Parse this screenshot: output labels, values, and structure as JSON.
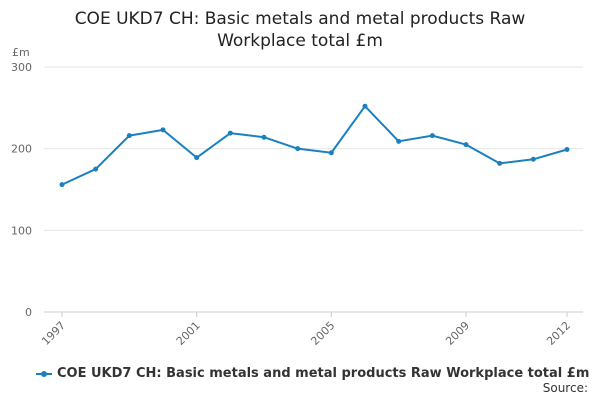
{
  "chart_data": {
    "type": "line",
    "title_lines": [
      "COE UKD7 CH: Basic metals and metal products Raw",
      "Workplace total £m"
    ],
    "unit_label": "£m",
    "x": [
      1997,
      1998,
      1999,
      2000,
      2001,
      2002,
      2003,
      2004,
      2005,
      2006,
      2007,
      2008,
      2009,
      2010,
      2011,
      2012
    ],
    "x_tick_labels": [
      "1997",
      "2001",
      "2005",
      "2009",
      "2012"
    ],
    "x_tick_values": [
      1997,
      2001,
      2005,
      2009,
      2012
    ],
    "y_ticks": [
      0,
      100,
      200,
      300
    ],
    "ylim": [
      0,
      300
    ],
    "xlim": [
      1997,
      2012
    ],
    "grid": true,
    "series": [
      {
        "name": "COE UKD7 CH: Basic metals and metal products Raw Workplace total £m",
        "color": "#1a80c0",
        "values": [
          156,
          175,
          216,
          223,
          189,
          219,
          214,
          200,
          195,
          252,
          209,
          216,
          205,
          182,
          187,
          199
        ]
      }
    ],
    "legend_position": "bottom-left"
  },
  "source_label": "Source:"
}
